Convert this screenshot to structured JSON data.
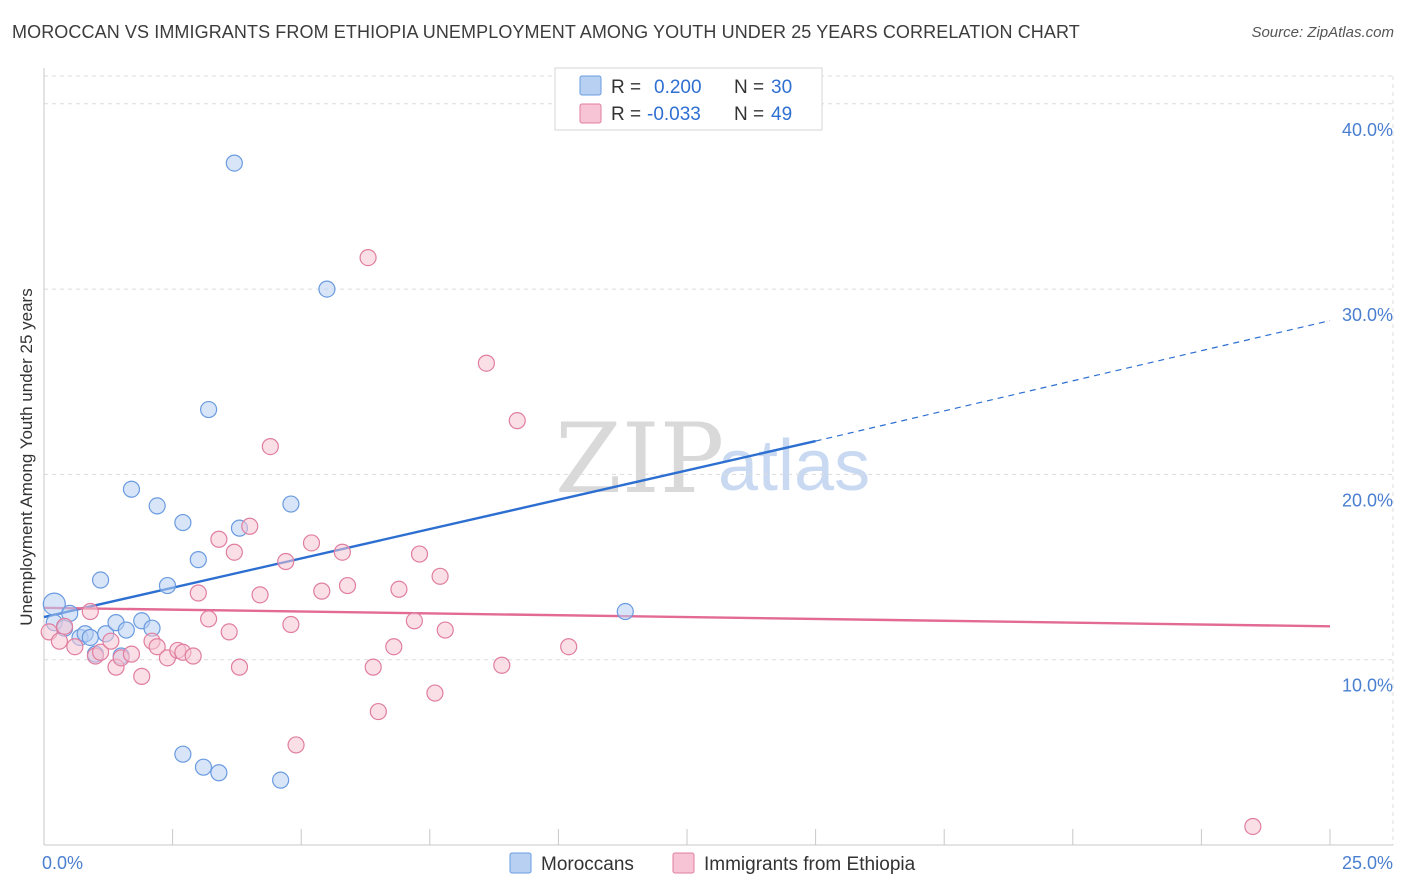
{
  "title": "MOROCCAN VS IMMIGRANTS FROM ETHIOPIA UNEMPLOYMENT AMONG YOUTH UNDER 25 YEARS CORRELATION CHART",
  "source": "Source: ZipAtlas.com",
  "watermark": {
    "zip": "ZIP",
    "atlas": "atlas"
  },
  "colors": {
    "blue": "#6a9be0",
    "blue_fill": "#b8d0f2",
    "blue_line": "#2d6fd0",
    "pink": "#e07ea0",
    "pink_fill": "#f6c4d4",
    "pink_line": "#e26a94",
    "tick_text": "#4a7fd0"
  },
  "legend": {
    "r_label": "R =",
    "n_label": "N =",
    "rows": [
      {
        "series": "Moroccans",
        "r": "0.200",
        "n": "30"
      },
      {
        "series": "Immigrants from Ethiopia",
        "r": "-0.033",
        "n": "49"
      }
    ]
  },
  "chart_data": {
    "type": "scatter",
    "title": "MOROCCAN VS IMMIGRANTS FROM ETHIOPIA UNEMPLOYMENT AMONG YOUTH UNDER 25 YEARS CORRELATION CHART",
    "xlabel": "",
    "ylabel": "Unemployment Among Youth under 25 years",
    "xlim": [
      0,
      25
    ],
    "ylim": [
      0,
      41.5
    ],
    "x_tick_labels": [
      "0.0%",
      "25.0%"
    ],
    "y_ticks": [
      10,
      20,
      30,
      40
    ],
    "y_tick_labels": [
      "10.0%",
      "20.0%",
      "30.0%",
      "40.0%"
    ],
    "grid": true,
    "legend_position": "bottom",
    "series": [
      {
        "name": "Moroccans",
        "color": "#6a9be0",
        "points": [
          [
            0.2,
            13.0
          ],
          [
            0.2,
            12.0
          ],
          [
            0.4,
            11.7
          ],
          [
            0.5,
            12.5
          ],
          [
            0.7,
            11.2
          ],
          [
            0.8,
            11.4
          ],
          [
            0.9,
            11.2
          ],
          [
            1.0,
            10.3
          ],
          [
            1.1,
            14.3
          ],
          [
            1.2,
            11.4
          ],
          [
            1.4,
            12.0
          ],
          [
            1.5,
            10.2
          ],
          [
            1.6,
            11.6
          ],
          [
            1.7,
            19.2
          ],
          [
            1.9,
            12.1
          ],
          [
            2.1,
            11.7
          ],
          [
            2.2,
            18.3
          ],
          [
            2.4,
            14.0
          ],
          [
            2.7,
            17.4
          ],
          [
            2.7,
            4.9
          ],
          [
            3.0,
            15.4
          ],
          [
            3.1,
            4.2
          ],
          [
            3.2,
            23.5
          ],
          [
            3.4,
            3.9
          ],
          [
            3.7,
            36.8
          ],
          [
            3.8,
            17.1
          ],
          [
            4.6,
            3.5
          ],
          [
            4.8,
            18.4
          ],
          [
            5.5,
            30.0
          ],
          [
            11.3,
            12.6
          ]
        ],
        "trend": {
          "x_start": 0.0,
          "y_start": 12.3,
          "x_solid_end": 15.0,
          "y_solid_end": 21.8,
          "x_end": 25.0,
          "y_end": 28.3
        }
      },
      {
        "name": "Immigrants from Ethiopia",
        "color": "#e07ea0",
        "points": [
          [
            0.1,
            11.5
          ],
          [
            0.3,
            11.0
          ],
          [
            0.4,
            11.8
          ],
          [
            0.6,
            10.7
          ],
          [
            0.9,
            12.6
          ],
          [
            1.0,
            10.2
          ],
          [
            1.1,
            10.4
          ],
          [
            1.3,
            11.0
          ],
          [
            1.4,
            9.6
          ],
          [
            1.5,
            10.1
          ],
          [
            1.7,
            10.3
          ],
          [
            1.9,
            9.1
          ],
          [
            2.1,
            11.0
          ],
          [
            2.2,
            10.7
          ],
          [
            2.4,
            10.1
          ],
          [
            2.6,
            10.5
          ],
          [
            2.7,
            10.4
          ],
          [
            2.9,
            10.2
          ],
          [
            3.0,
            13.6
          ],
          [
            3.2,
            12.2
          ],
          [
            3.4,
            16.5
          ],
          [
            3.6,
            11.5
          ],
          [
            3.7,
            15.8
          ],
          [
            3.8,
            9.6
          ],
          [
            4.0,
            17.2
          ],
          [
            4.2,
            13.5
          ],
          [
            4.4,
            21.5
          ],
          [
            4.7,
            15.3
          ],
          [
            4.8,
            11.9
          ],
          [
            4.9,
            5.4
          ],
          [
            5.2,
            16.3
          ],
          [
            5.4,
            13.7
          ],
          [
            5.8,
            15.8
          ],
          [
            5.9,
            14.0
          ],
          [
            6.3,
            31.7
          ],
          [
            6.4,
            9.6
          ],
          [
            6.5,
            7.2
          ],
          [
            6.8,
            10.7
          ],
          [
            6.9,
            13.8
          ],
          [
            7.2,
            12.1
          ],
          [
            7.3,
            15.7
          ],
          [
            7.6,
            8.2
          ],
          [
            7.7,
            14.5
          ],
          [
            7.8,
            11.6
          ],
          [
            8.6,
            26.0
          ],
          [
            8.9,
            9.7
          ],
          [
            9.2,
            22.9
          ],
          [
            10.2,
            10.7
          ],
          [
            23.5,
            1.0
          ]
        ],
        "trend": {
          "x_start": 0.0,
          "y_start": 12.8,
          "x_solid_end": 25.0,
          "y_solid_end": 11.8,
          "x_end": 25.0,
          "y_end": 11.8
        }
      }
    ]
  }
}
